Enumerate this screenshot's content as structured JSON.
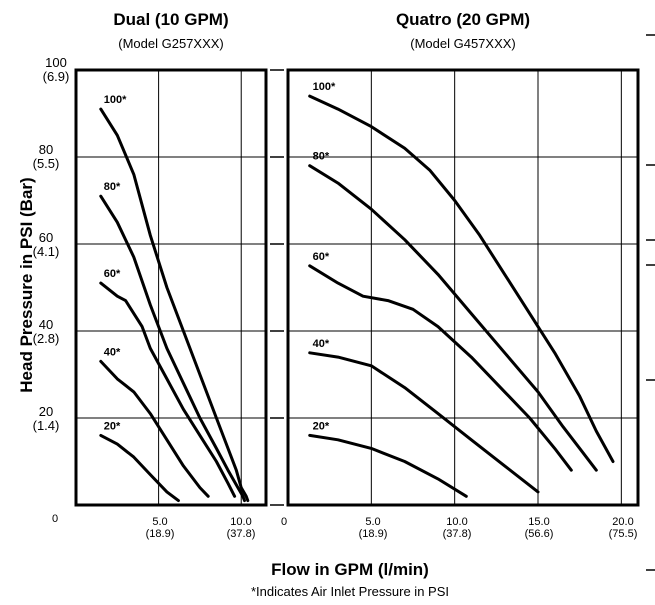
{
  "chart_data": [
    {
      "type": "line",
      "title": "Dual (10 GPM)",
      "subtitle": "(Model G257XXX)",
      "xlabel": "Flow in GPM (l/min)",
      "ylabel": "Head Pressure in PSI (Bar)",
      "xlim": [
        0,
        11.5
      ],
      "ylim": [
        0,
        100
      ],
      "grid": true,
      "x_ticks": [
        {
          "value": 0,
          "label": "0",
          "sub": ""
        },
        {
          "value": 5,
          "label": "5.0",
          "sub": "(18.9)"
        },
        {
          "value": 10,
          "label": "10.0",
          "sub": "(37.8)"
        }
      ],
      "series": [
        {
          "name": "100*",
          "x": [
            1.5,
            2.5,
            3.5,
            4.5,
            5.5,
            6.5,
            7.5,
            8.5,
            9.2,
            9.7,
            10.0,
            10.3,
            10.4
          ],
          "y": [
            91,
            85,
            76,
            62,
            50,
            40,
            30,
            20,
            13,
            8,
            4,
            2,
            1
          ]
        },
        {
          "name": "80*",
          "x": [
            1.5,
            2.5,
            3.5,
            4.5,
            5.5,
            6.5,
            7.5,
            8.5,
            9.2,
            9.8,
            10.1,
            10.2
          ],
          "y": [
            71,
            65,
            57,
            46,
            36,
            28,
            20,
            13,
            8,
            4,
            2,
            1
          ]
        },
        {
          "name": "60*",
          "x": [
            1.5,
            2.5,
            3.0,
            4.0,
            4.5,
            5.5,
            6.5,
            7.5,
            8.5,
            9.2,
            9.6
          ],
          "y": [
            51,
            48,
            47,
            41,
            36,
            29,
            22,
            16,
            10,
            5,
            2
          ]
        },
        {
          "name": "40*",
          "x": [
            1.5,
            2.5,
            3.5,
            4.5,
            5.5,
            6.5,
            7.5,
            8.0
          ],
          "y": [
            33,
            29,
            26,
            21,
            15,
            9,
            4,
            2
          ]
        },
        {
          "name": "20*",
          "x": [
            1.5,
            2.5,
            3.5,
            4.5,
            5.5,
            6.2
          ],
          "y": [
            16,
            14,
            11,
            7,
            3,
            1
          ]
        }
      ]
    },
    {
      "type": "line",
      "title": "Quatro (20 GPM)",
      "subtitle": "(Model G457XXX)",
      "xlabel": "Flow in GPM (l/min)",
      "ylabel": "Head Pressure in PSI (Bar)",
      "xlim": [
        0,
        21
      ],
      "ylim": [
        0,
        100
      ],
      "grid": true,
      "x_ticks": [
        {
          "value": 0,
          "label": "0",
          "sub": ""
        },
        {
          "value": 5,
          "label": "5.0",
          "sub": "(18.9)"
        },
        {
          "value": 10,
          "label": "10.0",
          "sub": "(37.8)"
        },
        {
          "value": 15,
          "label": "15.0",
          "sub": "(56.6)"
        },
        {
          "value": 20,
          "label": "20.0",
          "sub": "(75.5)"
        }
      ],
      "series": [
        {
          "name": "100*",
          "x": [
            1.3,
            3.0,
            5.0,
            7.0,
            8.5,
            10.0,
            11.5,
            13.0,
            14.5,
            16.0,
            17.5,
            18.5,
            19.5
          ],
          "y": [
            94,
            91,
            87,
            82,
            77,
            70,
            62,
            53,
            44,
            35,
            25,
            17,
            10
          ]
        },
        {
          "name": "80*",
          "x": [
            1.3,
            3.0,
            5.0,
            7.0,
            9.0,
            11.0,
            13.0,
            15.0,
            16.5,
            17.5,
            18.5
          ],
          "y": [
            78,
            74,
            68,
            61,
            53,
            44,
            35,
            26,
            18,
            13,
            8
          ]
        },
        {
          "name": "60*",
          "x": [
            1.3,
            3.0,
            4.5,
            6.0,
            7.5,
            9.0,
            11.0,
            13.0,
            14.5,
            16.0,
            17.0
          ],
          "y": [
            55,
            51,
            48,
            47,
            45,
            41,
            34,
            26,
            20,
            13,
            8
          ]
        },
        {
          "name": "40*",
          "x": [
            1.3,
            3.0,
            5.0,
            7.0,
            9.0,
            11.0,
            13.0,
            15.0
          ],
          "y": [
            35,
            34,
            32,
            27,
            21,
            15,
            9,
            3
          ]
        },
        {
          "name": "20*",
          "x": [
            1.3,
            3.0,
            5.0,
            7.0,
            9.0,
            10.7
          ],
          "y": [
            16,
            15,
            13,
            10,
            6,
            2
          ]
        }
      ]
    }
  ],
  "y_ticks": [
    {
      "psi": "100",
      "bar": "(6.9)"
    },
    {
      "psi": "80",
      "bar": "(5.5)"
    },
    {
      "psi": "60",
      "bar": "(4.1)"
    },
    {
      "psi": "40",
      "bar": "(2.8)"
    },
    {
      "psi": "20",
      "bar": "(1.4)"
    },
    {
      "psi": "0",
      "bar": ""
    }
  ],
  "y_axis_title": "Head Pressure in PSI (Bar)",
  "x_axis_title": "Flow in GPM (l/min)",
  "footnote": "*Indicates Air Inlet Pressure in PSI"
}
